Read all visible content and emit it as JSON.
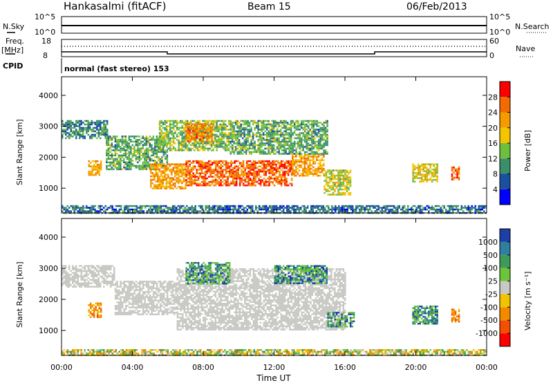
{
  "header": {
    "station": "Hankasalmi (fitACF)",
    "beam": "Beam 15",
    "date": "06/Feb/2013"
  },
  "noise_panel": {
    "left_label": "N.Sky",
    "right_label": "N.Search",
    "ticks_left": [
      "10^5",
      "10^0"
    ],
    "ticks_right": [
      "10^5",
      "10^0"
    ]
  },
  "freq_panel": {
    "left_label_line1": "Freq.",
    "left_label_line2": "[MHz]",
    "right_label": "Nave",
    "ticks_left": [
      "18",
      "8"
    ],
    "ticks_right": [
      "60",
      "0"
    ]
  },
  "cpid": {
    "label": "CPID",
    "mode": "normal (fast stereo) 153"
  },
  "time_axis": {
    "label": "Time UT",
    "ticks": [
      "00:00",
      "04:00",
      "08:00",
      "12:00",
      "16:00",
      "20:00",
      "00:00"
    ]
  },
  "power_panel": {
    "ylabel": "Slant Range [km]",
    "yticks": [
      "1000",
      "2000",
      "3000",
      "4000"
    ],
    "colorbar_label": "Power [dB]",
    "colorbar_ticks": [
      "4",
      "8",
      "12",
      "16",
      "20",
      "24",
      "28"
    ],
    "colors": [
      "#0000ff",
      "#1b4fa0",
      "#3a8f6a",
      "#6fbf3e",
      "#f5c400",
      "#f59b00",
      "#f26a00",
      "#ff0000"
    ]
  },
  "velocity_panel": {
    "ylabel": "Slant Range [km]",
    "yticks": [
      "1000",
      "2000",
      "3000",
      "4000"
    ],
    "colorbar_label": "Velocity [m s⁻¹]",
    "colorbar_ticks": [
      "1000",
      "500",
      "100",
      "25",
      "-25",
      "-100",
      "-500",
      "-1000"
    ],
    "colors": [
      "#1e3fa8",
      "#2e7fa0",
      "#3f9a5a",
      "#6cc43a",
      "#c8c8c4",
      "#f2c300",
      "#f28a00",
      "#f25000",
      "#ff0000"
    ]
  },
  "chart_data": {
    "type": "heatmap",
    "x_unit": "hours UT",
    "y_unit": "km",
    "xlim": [
      0,
      24
    ],
    "ylim": [
      200,
      4600
    ],
    "power_echo_regions": [
      {
        "t0": 0.0,
        "t1": 2.6,
        "r0": 2600,
        "r1": 3200,
        "level": 8
      },
      {
        "t0": 1.5,
        "t1": 2.2,
        "r0": 1400,
        "r1": 1900,
        "level": 20
      },
      {
        "t0": 2.5,
        "t1": 6.0,
        "r0": 1600,
        "r1": 2700,
        "level": 10
      },
      {
        "t0": 5.0,
        "t1": 7.0,
        "r0": 1000,
        "r1": 1800,
        "level": 20
      },
      {
        "t0": 5.5,
        "t1": 9.5,
        "r0": 2200,
        "r1": 3200,
        "level": 12
      },
      {
        "t0": 7.0,
        "t1": 8.5,
        "r0": 2500,
        "r1": 3100,
        "level": 22
      },
      {
        "t0": 7.0,
        "t1": 13.0,
        "r0": 1100,
        "r1": 1900,
        "level": 24
      },
      {
        "t0": 13.0,
        "t1": 14.8,
        "r0": 1400,
        "r1": 2100,
        "level": 20
      },
      {
        "t0": 9.5,
        "t1": 15.0,
        "r0": 2100,
        "r1": 3200,
        "level": 10
      },
      {
        "t0": 14.8,
        "t1": 16.3,
        "r0": 800,
        "r1": 1600,
        "level": 14
      },
      {
        "t0": 19.8,
        "t1": 21.2,
        "r0": 1200,
        "r1": 1800,
        "level": 16
      },
      {
        "t0": 22.0,
        "t1": 22.4,
        "r0": 1300,
        "r1": 1700,
        "level": 24
      },
      {
        "t0": 0.0,
        "t1": 24.0,
        "r0": 200,
        "r1": 450,
        "level": 6
      }
    ],
    "velocity_echo_regions": [
      {
        "t0": 0.0,
        "t1": 3.0,
        "r0": 2400,
        "r1": 3100,
        "class": "ground"
      },
      {
        "t0": 3.0,
        "t1": 6.5,
        "r0": 1500,
        "r1": 2600,
        "class": "ground"
      },
      {
        "t0": 6.5,
        "t1": 16.0,
        "r0": 1000,
        "r1": 3000,
        "class": "ground"
      },
      {
        "t0": 1.5,
        "t1": 2.2,
        "r0": 1400,
        "r1": 1900,
        "class": "negative"
      },
      {
        "t0": 7.0,
        "t1": 9.5,
        "r0": 2500,
        "r1": 3200,
        "class": "positive"
      },
      {
        "t0": 12.0,
        "t1": 15.0,
        "r0": 2500,
        "r1": 3100,
        "class": "positive"
      },
      {
        "t0": 15.0,
        "t1": 16.5,
        "r0": 1100,
        "r1": 1600,
        "class": "positive"
      },
      {
        "t0": 19.8,
        "t1": 21.2,
        "r0": 1200,
        "r1": 1800,
        "class": "positive"
      },
      {
        "t0": 22.0,
        "t1": 22.4,
        "r0": 1300,
        "r1": 1700,
        "class": "negative"
      },
      {
        "t0": 0.0,
        "t1": 24.0,
        "r0": 200,
        "r1": 400,
        "class": "mixed"
      }
    ]
  }
}
